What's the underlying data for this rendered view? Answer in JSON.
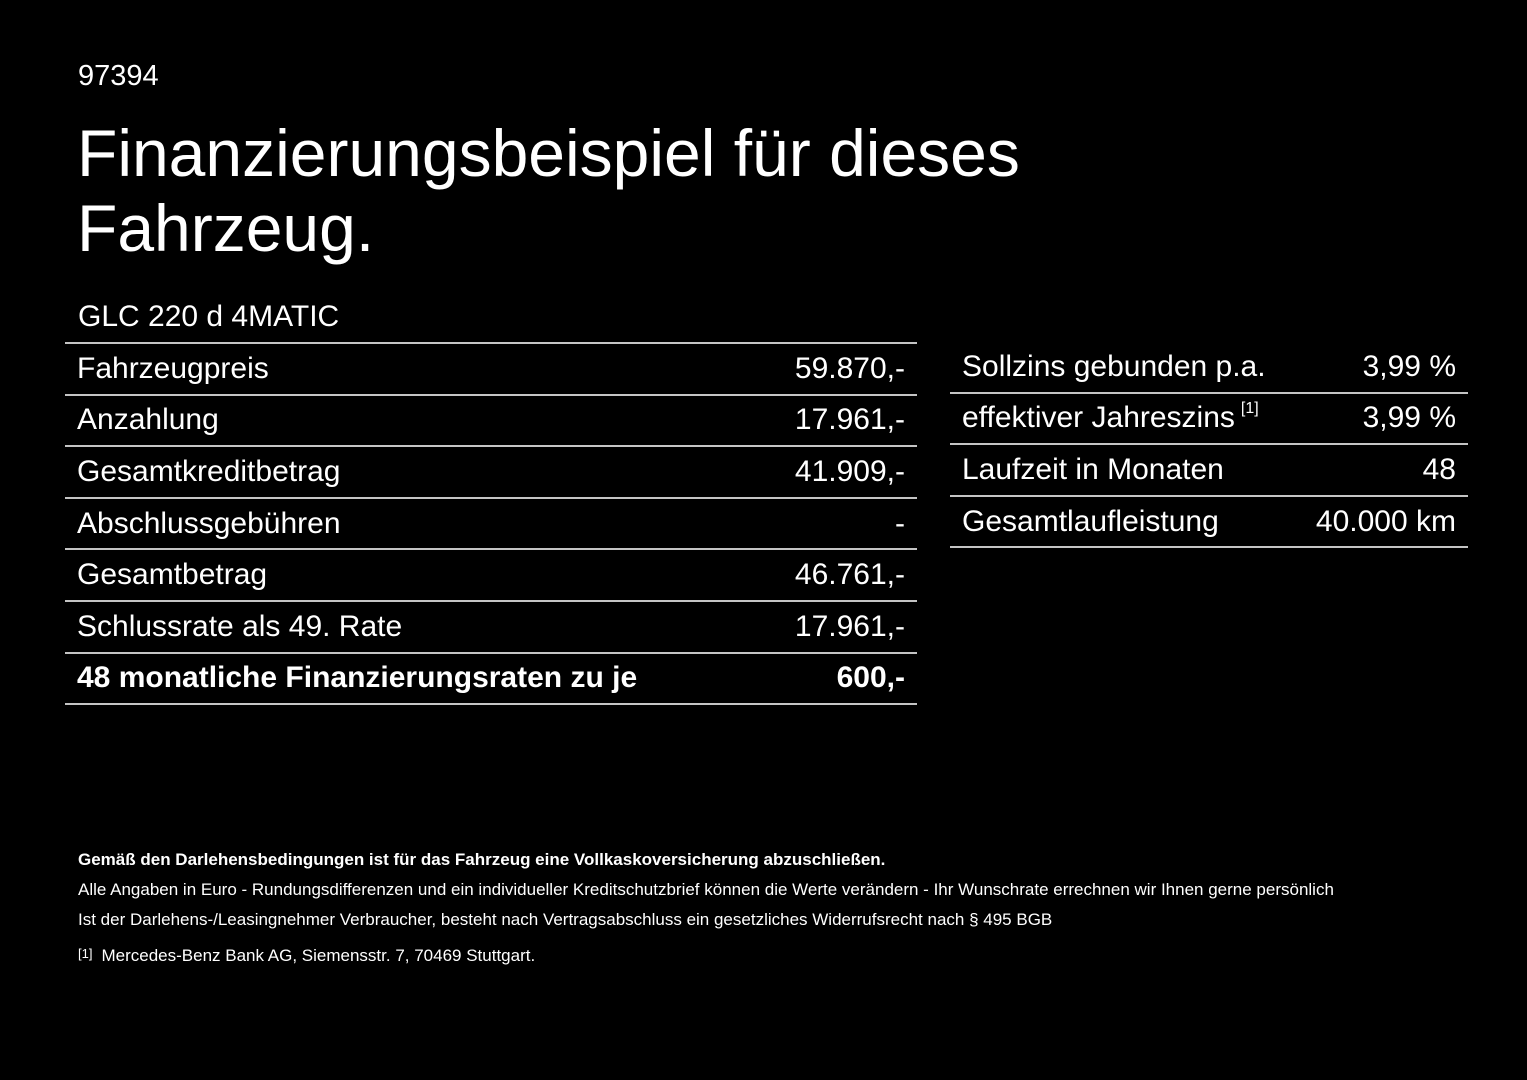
{
  "page": {
    "doc_number": "97394",
    "title_line1": "Finanzierungsbeispiel für dieses",
    "title_line2": "Fahrzeug.",
    "model": "GLC 220 d 4MATIC"
  },
  "left_table": {
    "rows": [
      {
        "label": "Fahrzeugpreis",
        "value": "59.870,-",
        "bold": false
      },
      {
        "label": "Anzahlung",
        "value": "17.961,-",
        "bold": false
      },
      {
        "label": "Gesamtkreditbetrag",
        "value": "41.909,-",
        "bold": false
      },
      {
        "label": "Abschlussgebühren",
        "value": "-",
        "bold": false
      },
      {
        "label": "Gesamtbetrag",
        "value": "46.761,-",
        "bold": false
      },
      {
        "label": "Schlussrate als 49. Rate",
        "value": "17.961,-",
        "bold": false
      },
      {
        "label": "48 monatliche Finanzierungsraten zu je",
        "value": "600,-",
        "bold": true
      }
    ]
  },
  "right_table": {
    "rows": [
      {
        "label": "Sollzins gebunden p.a.",
        "sup": "",
        "value": "3,99 %"
      },
      {
        "label": "effektiver Jahreszins",
        "sup": "[1]",
        "value": "3,99 %"
      },
      {
        "label": "Laufzeit in Monaten",
        "sup": "",
        "value": "48"
      },
      {
        "label": "Gesamtlaufleistung",
        "sup": "",
        "value": "40.000 km"
      }
    ]
  },
  "footer": {
    "bold_note": "Gemäß den Darlehensbedingungen ist für das Fahrzeug eine Vollkaskoversicherung abzuschließen.",
    "note1": "Alle Angaben in Euro - Rundungsdifferenzen und ein individueller Kreditschutzbrief können die Werte verändern - Ihr Wunschrate errechnen wir Ihnen gerne persönlich",
    "note2": "Ist der Darlehens-/Leasingnehmer Verbraucher, besteht nach Vertragsabschluss ein gesetzliches Widerrufsrecht nach § 495 BGB",
    "footnote_marker": "[1]",
    "footnote_text": "Mercedes-Benz Bank AG, Siemensstr. 7, 70469 Stuttgart."
  },
  "colors": {
    "background": "#000000",
    "text": "#ffffff",
    "rule": "#c4c4c4"
  }
}
